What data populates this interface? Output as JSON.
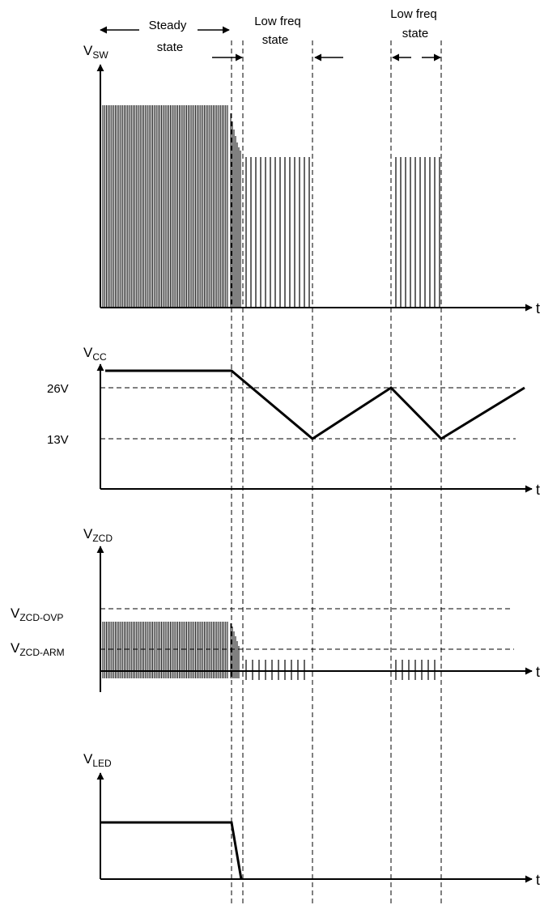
{
  "regions": {
    "steady_line1": "Steady",
    "steady_line2": "state",
    "lowfreq_a_line1": "Low freq",
    "lowfreq_a_line2": "state",
    "lowfreq_b_line1": "Low freq",
    "lowfreq_b_line2": "state"
  },
  "panels": [
    {
      "key": "vsw",
      "axis_main": "V",
      "axis_sub": "SW",
      "time_label": "t"
    },
    {
      "key": "vcc",
      "axis_main": "V",
      "axis_sub": "CC",
      "time_label": "t"
    },
    {
      "key": "vzcd",
      "axis_main": "V",
      "axis_sub": "ZCD",
      "time_label": "t"
    },
    {
      "key": "vled",
      "axis_main": "V",
      "axis_sub": "LED",
      "time_label": "t"
    }
  ],
  "levels": {
    "v26": "26V",
    "v13": "13V",
    "zcd_ovp_main": "V",
    "zcd_ovp_sub": "ZCD-OVP",
    "zcd_arm_main": "V",
    "zcd_arm_sub": "ZCD-ARM"
  },
  "colors": {
    "ink": "#000000",
    "background": "#ffffff"
  }
}
